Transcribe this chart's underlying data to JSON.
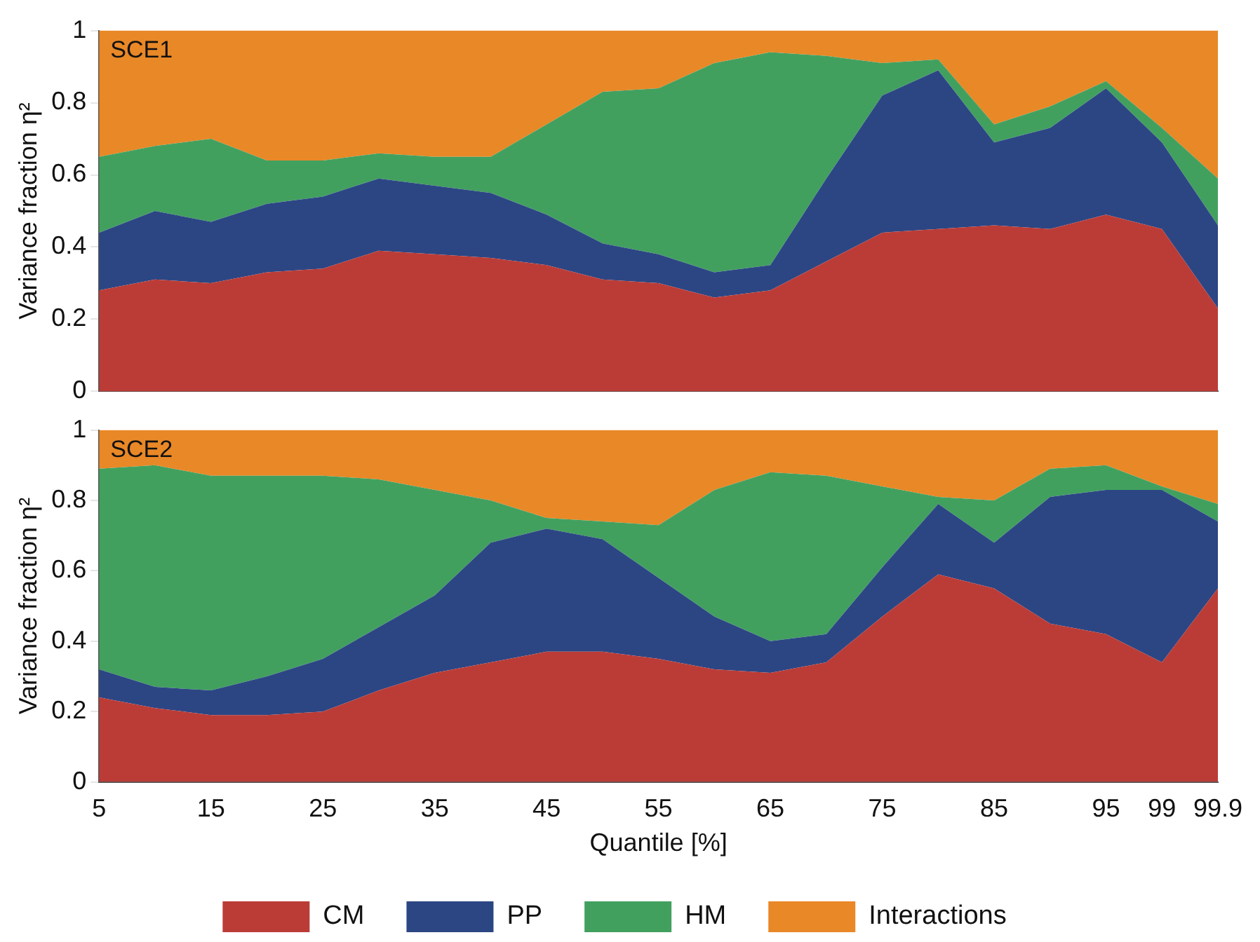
{
  "chart_data": [
    {
      "type": "area",
      "stacked": true,
      "grid": false,
      "legend": false,
      "tick_labels": "y",
      "ylabel": "Variance fraction η²",
      "annotations": [
        "SCE1"
      ],
      "categories": [
        "5",
        null,
        "15",
        null,
        "25",
        null,
        "35",
        null,
        "45",
        null,
        "55",
        null,
        "65",
        null,
        "75",
        null,
        "85",
        null,
        "95",
        "99",
        "99.9"
      ],
      "ylim": [
        0,
        1
      ],
      "yticks": [
        0,
        0.2,
        0.4,
        0.6,
        0.8,
        1
      ],
      "series": [
        {
          "color": "#bb3c37",
          "values": [
            0.28,
            0.31,
            0.3,
            0.33,
            0.34,
            0.39,
            0.38,
            0.37,
            0.35,
            0.31,
            0.3,
            0.26,
            0.28,
            0.36,
            0.44,
            0.45,
            0.46,
            0.45,
            0.49,
            0.45,
            0.23
          ]
        },
        {
          "color": "#2c4684",
          "values": [
            0.16,
            0.19,
            0.17,
            0.19,
            0.2,
            0.2,
            0.19,
            0.18,
            0.14,
            0.1,
            0.08,
            0.07,
            0.07,
            0.23,
            0.38,
            0.44,
            0.23,
            0.28,
            0.35,
            0.24,
            0.23
          ]
        },
        {
          "color": "#42a05f",
          "values": [
            0.21,
            0.18,
            0.23,
            0.12,
            0.1,
            0.07,
            0.08,
            0.1,
            0.25,
            0.42,
            0.46,
            0.58,
            0.59,
            0.34,
            0.09,
            0.03,
            0.05,
            0.06,
            0.02,
            0.04,
            0.13
          ]
        },
        {
          "color": "#e98827",
          "values": [
            0.35,
            0.32,
            0.3,
            0.36,
            0.36,
            0.34,
            0.35,
            0.35,
            0.26,
            0.17,
            0.16,
            0.09,
            0.06,
            0.07,
            0.09,
            0.08,
            0.26,
            0.21,
            0.14,
            0.27,
            0.41
          ]
        }
      ]
    },
    {
      "type": "area",
      "stacked": true,
      "grid": false,
      "legend": "bottom",
      "xlabel": "Quantile [%]",
      "ylabel": "Variance fraction η²",
      "annotations": [
        "SCE2"
      ],
      "categories": [
        "5",
        null,
        "15",
        null,
        "25",
        null,
        "35",
        null,
        "45",
        null,
        "55",
        null,
        "65",
        null,
        "75",
        null,
        "85",
        null,
        "95",
        "99",
        "99.9"
      ],
      "ylim": [
        0,
        1
      ],
      "yticks": [
        0,
        0.2,
        0.4,
        0.6,
        0.8,
        1
      ],
      "series": [
        {
          "name": "CM",
          "color": "#bb3c37",
          "values": [
            0.24,
            0.21,
            0.19,
            0.19,
            0.2,
            0.26,
            0.31,
            0.34,
            0.37,
            0.37,
            0.35,
            0.32,
            0.31,
            0.34,
            0.47,
            0.59,
            0.55,
            0.45,
            0.42,
            0.34,
            0.55
          ]
        },
        {
          "name": "PP",
          "color": "#2c4684",
          "values": [
            0.08,
            0.06,
            0.07,
            0.11,
            0.15,
            0.18,
            0.22,
            0.34,
            0.35,
            0.32,
            0.23,
            0.15,
            0.09,
            0.08,
            0.14,
            0.2,
            0.13,
            0.36,
            0.41,
            0.49,
            0.19
          ]
        },
        {
          "name": "HM",
          "color": "#42a05f",
          "values": [
            0.57,
            0.63,
            0.61,
            0.57,
            0.52,
            0.42,
            0.3,
            0.12,
            0.03,
            0.05,
            0.15,
            0.36,
            0.48,
            0.45,
            0.23,
            0.02,
            0.12,
            0.08,
            0.07,
            0.01,
            0.05
          ]
        },
        {
          "name": "Interactions",
          "color": "#e98827",
          "values": [
            0.11,
            0.1,
            0.13,
            0.13,
            0.13,
            0.14,
            0.17,
            0.2,
            0.25,
            0.26,
            0.27,
            0.17,
            0.12,
            0.13,
            0.16,
            0.19,
            0.2,
            0.11,
            0.1,
            0.16,
            0.21
          ]
        }
      ]
    }
  ]
}
